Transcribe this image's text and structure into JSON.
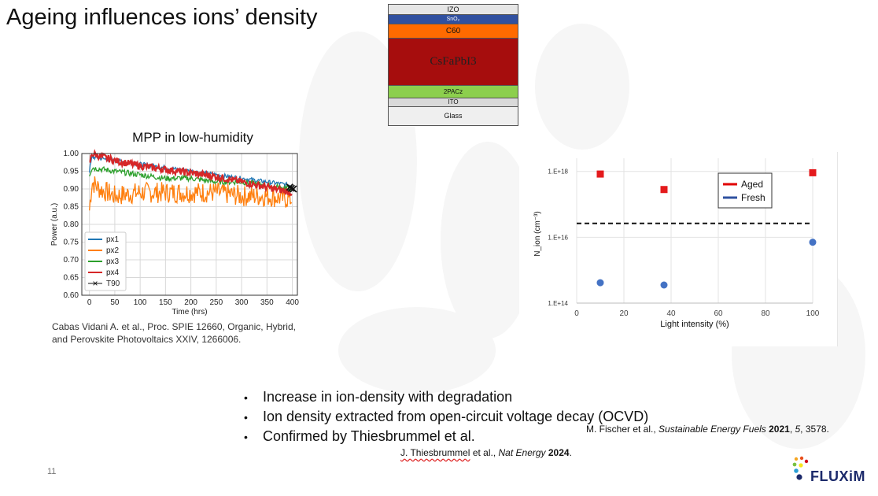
{
  "slide": {
    "title": "Ageing influences ions’ density",
    "page_number": "11"
  },
  "device_stack": {
    "layers": [
      {
        "label": "IZO",
        "color": "#e6e6e6"
      },
      {
        "label": "SnO₂",
        "color": "#3050a0"
      },
      {
        "label": "C60",
        "color": "#ff6a00"
      },
      {
        "label": "CsFaPbI3",
        "color": "#a60d0d"
      },
      {
        "label": "2PACz",
        "color": "#8ccf4d"
      },
      {
        "label": "ITO",
        "color": "#d9d9d9"
      },
      {
        "label": "Glass",
        "color": "#efefef"
      }
    ]
  },
  "left_chart": {
    "title": "MPP in low-humidity",
    "reference_line1_author": "Cabas Vidani A. et al.,",
    "reference_line1_rest": " Proc. SPIE 12660, Organic, Hybrid,",
    "reference_line2": "and Perovskite Photovoltaics XXIV, 1266006."
  },
  "right_chart": {
    "reference_prefix": "M. Fischer et al., ",
    "reference_journal": "Sustainable Energy Fuels",
    "reference_year": " 2021",
    "reference_suffix_1": ", ",
    "reference_volume": "5",
    "reference_suffix_2": ", 3578."
  },
  "bullets": [
    "Increase in ion-density with degradation",
    "Ion density extracted from open-circuit voltage decay (OCVD)",
    "Confirmed by Thiesbrummel et al."
  ],
  "second_reference": {
    "author": "J. Thiesbrummel",
    "rest": " et al., ",
    "journal": "Nat Energy",
    "year": " 2024",
    "end": "."
  },
  "logo": {
    "text": "FLUXiM",
    "dot_colors": [
      "#f5a623",
      "#e94e1b",
      "#7ac142",
      "#2a9fd6",
      "#1c2a6b",
      "#d0021b",
      "#f8e71c"
    ]
  },
  "chart_data": [
    {
      "type": "line",
      "title": "MPP in low-humidity",
      "xlabel": "Time (hrs)",
      "ylabel": "Power (a.u.)",
      "xlim": [
        -15,
        410
      ],
      "ylim": [
        0.6,
        1.0
      ],
      "xticks": [
        0,
        50,
        100,
        150,
        200,
        250,
        300,
        350,
        400
      ],
      "yticks": [
        0.6,
        0.65,
        0.7,
        0.75,
        0.8,
        0.85,
        0.9,
        0.95,
        1.0
      ],
      "grid": true,
      "legend_position": "bottom-left",
      "series": [
        {
          "name": "px1",
          "color": "#1f77b4",
          "x": [
            0,
            5,
            50,
            100,
            150,
            200,
            250,
            300,
            350,
            400
          ],
          "y": [
            0.95,
            0.99,
            0.98,
            0.97,
            0.96,
            0.95,
            0.94,
            0.93,
            0.92,
            0.91
          ]
        },
        {
          "name": "px2",
          "color": "#ff7f0e",
          "x": [
            0,
            5,
            20,
            50,
            100,
            150,
            200,
            250,
            300,
            350,
            400
          ],
          "y": [
            0.84,
            0.92,
            0.9,
            0.88,
            0.89,
            0.89,
            0.89,
            0.89,
            0.88,
            0.88,
            0.87
          ]
        },
        {
          "name": "px3",
          "color": "#2ca02c",
          "x": [
            0,
            5,
            50,
            100,
            150,
            200,
            250,
            300,
            350,
            400
          ],
          "y": [
            0.94,
            0.96,
            0.95,
            0.94,
            0.93,
            0.93,
            0.92,
            0.92,
            0.91,
            0.9
          ]
        },
        {
          "name": "px4",
          "color": "#d62728",
          "x": [
            0,
            5,
            50,
            100,
            150,
            200,
            250,
            300,
            350,
            400
          ],
          "y": [
            0.97,
            1.0,
            0.98,
            0.965,
            0.955,
            0.945,
            0.935,
            0.92,
            0.905,
            0.89
          ]
        },
        {
          "name": "T90",
          "color": "#111111",
          "marker": "x",
          "x": [
            395,
            398,
            402
          ],
          "y": [
            0.905,
            0.902,
            0.9
          ]
        }
      ]
    },
    {
      "type": "scatter",
      "xlabel": "Light intensity (%)",
      "ylabel": "N_ion (cm⁻³)",
      "xlim": [
        0,
        100
      ],
      "ylim_log10": [
        14,
        18.4
      ],
      "xticks": [
        0,
        20,
        40,
        60,
        80,
        100
      ],
      "yticks": [
        "1.E+14",
        "1.E+16",
        "1.E+18"
      ],
      "grid": true,
      "legend_position": "top-right",
      "reference_line": {
        "style": "dashed",
        "y_log10": 16.42
      },
      "series": [
        {
          "name": "Aged",
          "color": "#e41a1c",
          "marker": "square",
          "x": [
            10,
            37,
            100
          ],
          "y_log10": [
            17.92,
            17.45,
            17.96
          ]
        },
        {
          "name": "Fresh",
          "color": "#4472c4",
          "marker": "circle",
          "x": [
            10,
            37,
            100
          ],
          "y_log10": [
            14.62,
            14.55,
            15.85
          ]
        }
      ]
    }
  ]
}
